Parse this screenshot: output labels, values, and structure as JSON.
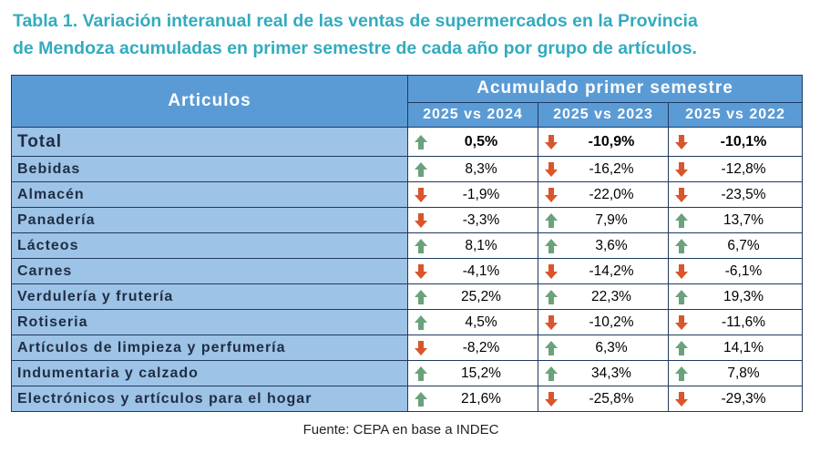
{
  "header": {
    "title_lines": [
      "Tabla 1. Variación interanual real de las ventas de supermercados en la Provincia",
      "de Mendoza acumuladas en primer semestre de cada año por grupo de artículos."
    ]
  },
  "table": {
    "row_header": "Articulos",
    "group_header": "Acumulado primer semestre",
    "columns": [
      "2025 vs 2024",
      "2025 vs 2023",
      "2025 vs 2022"
    ],
    "rows": [
      [
        "Total",
        "0,5%",
        "-10,9%",
        "-10,1%"
      ],
      [
        "Bebidas",
        "8,3%",
        "-16,2%",
        "-12,8%"
      ],
      [
        "Almacén",
        "-1,9%",
        "-22,0%",
        "-23,5%"
      ],
      [
        "Panadería",
        "-3,3%",
        "7,9%",
        "13,7%"
      ],
      [
        "Lácteos",
        "8,1%",
        "3,6%",
        "6,7%"
      ],
      [
        "Carnes",
        "-4,1%",
        "-14,2%",
        "-6,1%"
      ],
      [
        "Verdulería y frutería",
        "25,2%",
        "22,3%",
        "19,3%"
      ],
      [
        "Rotiseria",
        "4,5%",
        "-10,2%",
        "-11,6%"
      ],
      [
        "Artículos de limpieza y perfumería",
        "-8,2%",
        "6,3%",
        "14,1%"
      ],
      [
        "Indumentaria y calzado",
        "15,2%",
        "34,3%",
        "7,8%"
      ],
      [
        "Electrónicos y artículos para el hogar",
        "21,6%",
        "-25,8%",
        "-29,3%"
      ]
    ]
  },
  "footer": {
    "source": "Fuente: CEPA en base a INDEC"
  }
}
